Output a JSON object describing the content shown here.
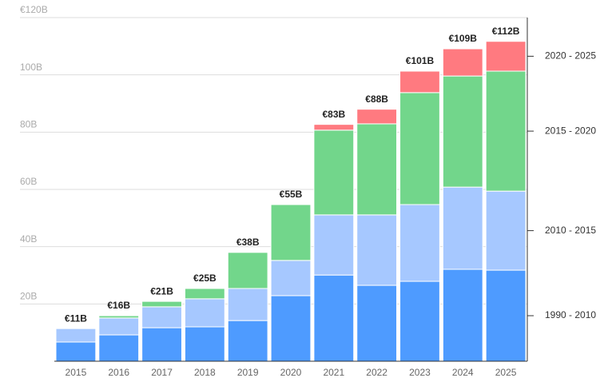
{
  "chart_data": {
    "type": "stacked_bar",
    "categories": [
      "2015",
      "2016",
      "2017",
      "2018",
      "2019",
      "2020",
      "2021",
      "2022",
      "2023",
      "2024",
      "2025"
    ],
    "series": [
      {
        "name": "1990 - 2010",
        "color": "#4e9bff",
        "values": [
          6.7,
          9.2,
          11.7,
          12.0,
          14.2,
          22.9,
          30.1,
          26.5,
          27.9,
          32.1,
          31.8
        ]
      },
      {
        "name": "2010 - 2015",
        "color": "#a6c8ff",
        "values": [
          4.7,
          5.9,
          7.3,
          9.8,
          11.2,
          12.3,
          21.0,
          24.6,
          26.8,
          28.7,
          27.6
        ]
      },
      {
        "name": "2015 - 2020",
        "color": "#72d68b",
        "values": [
          null,
          0.8,
          1.9,
          3.6,
          12.6,
          19.5,
          29.6,
          31.8,
          39.1,
          38.8,
          41.9
        ]
      },
      {
        "name": "2020 - 2025",
        "color": "#ff7a80",
        "values": [
          null,
          null,
          null,
          null,
          null,
          null,
          2.0,
          5.1,
          7.5,
          9.5,
          10.4
        ]
      }
    ],
    "totals": {
      "values": [
        11,
        16,
        21,
        25,
        38,
        55,
        83,
        88,
        101,
        109,
        112
      ],
      "value_labels": [
        "€11B",
        "€16B",
        "€21B",
        "€25B",
        "€38B",
        "€55B",
        "€83B",
        "€88B",
        "€101B",
        "€109B",
        "€112B"
      ]
    },
    "ylim": [
      0,
      120
    ],
    "yticks": [
      {
        "value": 20,
        "label": "20B"
      },
      {
        "value": 40,
        "label": "40B"
      },
      {
        "value": 60,
        "label": "60B"
      },
      {
        "value": 80,
        "label": "80B"
      },
      {
        "value": 100,
        "label": "100B"
      },
      {
        "value": 120,
        "label": "€120B"
      }
    ],
    "grid": true
  }
}
